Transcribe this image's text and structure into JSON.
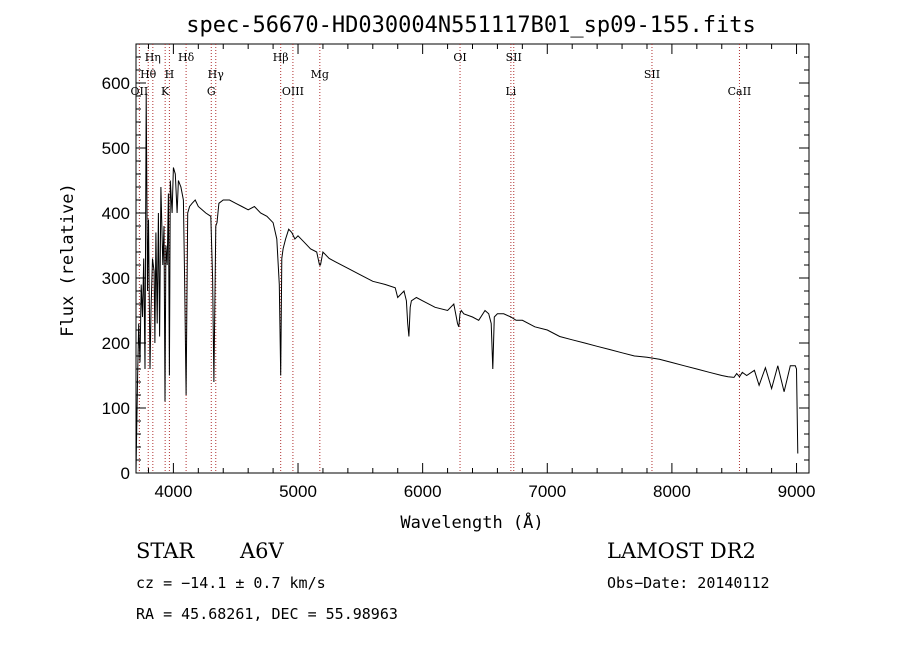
{
  "chart_data": {
    "type": "line",
    "title": "spec-56670-HD030004N551117B01_sp09-155.fits",
    "xlabel": "Wavelength (Å)",
    "ylabel": "Flux (relative)",
    "xlim": [
      3700,
      9100
    ],
    "ylim": [
      0,
      660
    ],
    "xticks": [
      4000,
      5000,
      6000,
      7000,
      8000,
      9000
    ],
    "yticks": [
      0,
      100,
      200,
      300,
      400,
      500,
      600
    ],
    "grid": false,
    "series": [
      {
        "name": "",
        "x": [
          3700,
          3712,
          3722,
          3732,
          3742,
          3752,
          3762,
          3772,
          3782,
          3792,
          3800,
          3812,
          3820,
          3832,
          3845,
          3852,
          3860,
          3870,
          3880,
          3889,
          3900,
          3915,
          3925,
          3933,
          3940,
          3950,
          3960,
          3968,
          3975,
          3990,
          4000,
          4015,
          4030,
          4040,
          4060,
          4080,
          4090,
          4102,
          4115,
          4130,
          4150,
          4175,
          4200,
          4230,
          4260,
          4300,
          4315,
          4325,
          4340,
          4350,
          4365,
          4400,
          4450,
          4500,
          4550,
          4600,
          4650,
          4700,
          4750,
          4800,
          4830,
          4850,
          4861,
          4870,
          4880,
          4900,
          4925,
          4950,
          4975,
          5000,
          5050,
          5100,
          5150,
          5172,
          5180,
          5200,
          5250,
          5300,
          5400,
          5500,
          5600,
          5700,
          5780,
          5800,
          5850,
          5870,
          5880,
          5890,
          5900,
          5910,
          5950,
          6000,
          6100,
          6200,
          6250,
          6270,
          6280,
          6290,
          6300,
          6310,
          6330,
          6400,
          6450,
          6500,
          6530,
          6550,
          6563,
          6575,
          6600,
          6650,
          6708,
          6750,
          6800,
          6900,
          7000,
          7100,
          7200,
          7300,
          7400,
          7500,
          7600,
          7700,
          7800,
          7900,
          8000,
          8100,
          8200,
          8300,
          8400,
          8450,
          8498,
          8520,
          8542,
          8565,
          8600,
          8662,
          8700,
          8750,
          8800,
          8850,
          8900,
          8950,
          8990,
          9000,
          9010
        ],
        "y": [
          0,
          140,
          230,
          170,
          290,
          240,
          330,
          160,
          585,
          280,
          390,
          160,
          250,
          330,
          310,
          200,
          370,
          230,
          400,
          210,
          440,
          320,
          380,
          110,
          350,
          320,
          430,
          150,
          450,
          400,
          470,
          460,
          400,
          450,
          440,
          420,
          300,
          120,
          400,
          410,
          415,
          420,
          410,
          405,
          400,
          395,
          300,
          140,
          380,
          385,
          415,
          420,
          420,
          415,
          410,
          405,
          410,
          400,
          395,
          385,
          360,
          290,
          150,
          330,
          345,
          360,
          375,
          370,
          360,
          365,
          355,
          345,
          340,
          320,
          320,
          340,
          330,
          325,
          315,
          305,
          295,
          290,
          285,
          270,
          280,
          265,
          230,
          210,
          255,
          265,
          270,
          265,
          255,
          250,
          260,
          240,
          230,
          225,
          245,
          250,
          245,
          240,
          235,
          250,
          245,
          230,
          160,
          240,
          245,
          245,
          240,
          235,
          235,
          225,
          220,
          210,
          205,
          200,
          195,
          190,
          185,
          180,
          178,
          175,
          170,
          165,
          160,
          155,
          150,
          148,
          147,
          153,
          148,
          155,
          150,
          158,
          135,
          162,
          130,
          165,
          125,
          165,
          165,
          160,
          30
        ]
      }
    ],
    "spectral_lines": [
      {
        "label": "Hη",
        "x": 3835,
        "row": 1
      },
      {
        "label": "Hθ",
        "x": 3798,
        "row": 2
      },
      {
        "label": "OII",
        "x": 3727,
        "row": 3
      },
      {
        "label": "H",
        "x": 3968,
        "row": 2
      },
      {
        "label": "K",
        "x": 3934,
        "row": 3
      },
      {
        "label": "Hδ",
        "x": 4102,
        "row": 1
      },
      {
        "label": "Hγ",
        "x": 4340,
        "row": 2
      },
      {
        "label": "G",
        "x": 4304,
        "row": 3
      },
      {
        "label": "Hβ",
        "x": 4861,
        "row": 1
      },
      {
        "label": "Mg",
        "x": 5175,
        "row": 2
      },
      {
        "label": "OIII",
        "x": 4959,
        "row": 3
      },
      {
        "label": "OI",
        "x": 6300,
        "row": 1
      },
      {
        "label": "SII",
        "x": 6731,
        "row": 1
      },
      {
        "label": "Li",
        "x": 6708,
        "row": 3
      },
      {
        "label": "SII",
        "x": 7840,
        "row": 2
      },
      {
        "label": "CaII",
        "x": 8542,
        "row": 3
      }
    ]
  },
  "info": {
    "class_label": "STAR",
    "subclass": "A6V",
    "survey": "LAMOST DR2",
    "cz": "cz = −14.1 ± 0.7 km/s",
    "obs_date": "Obs−Date: 20140112",
    "coords": "RA =  45.68261, DEC =  55.98963"
  },
  "colors": {
    "spectrum": "#000000",
    "line_markers": "#b03030"
  }
}
